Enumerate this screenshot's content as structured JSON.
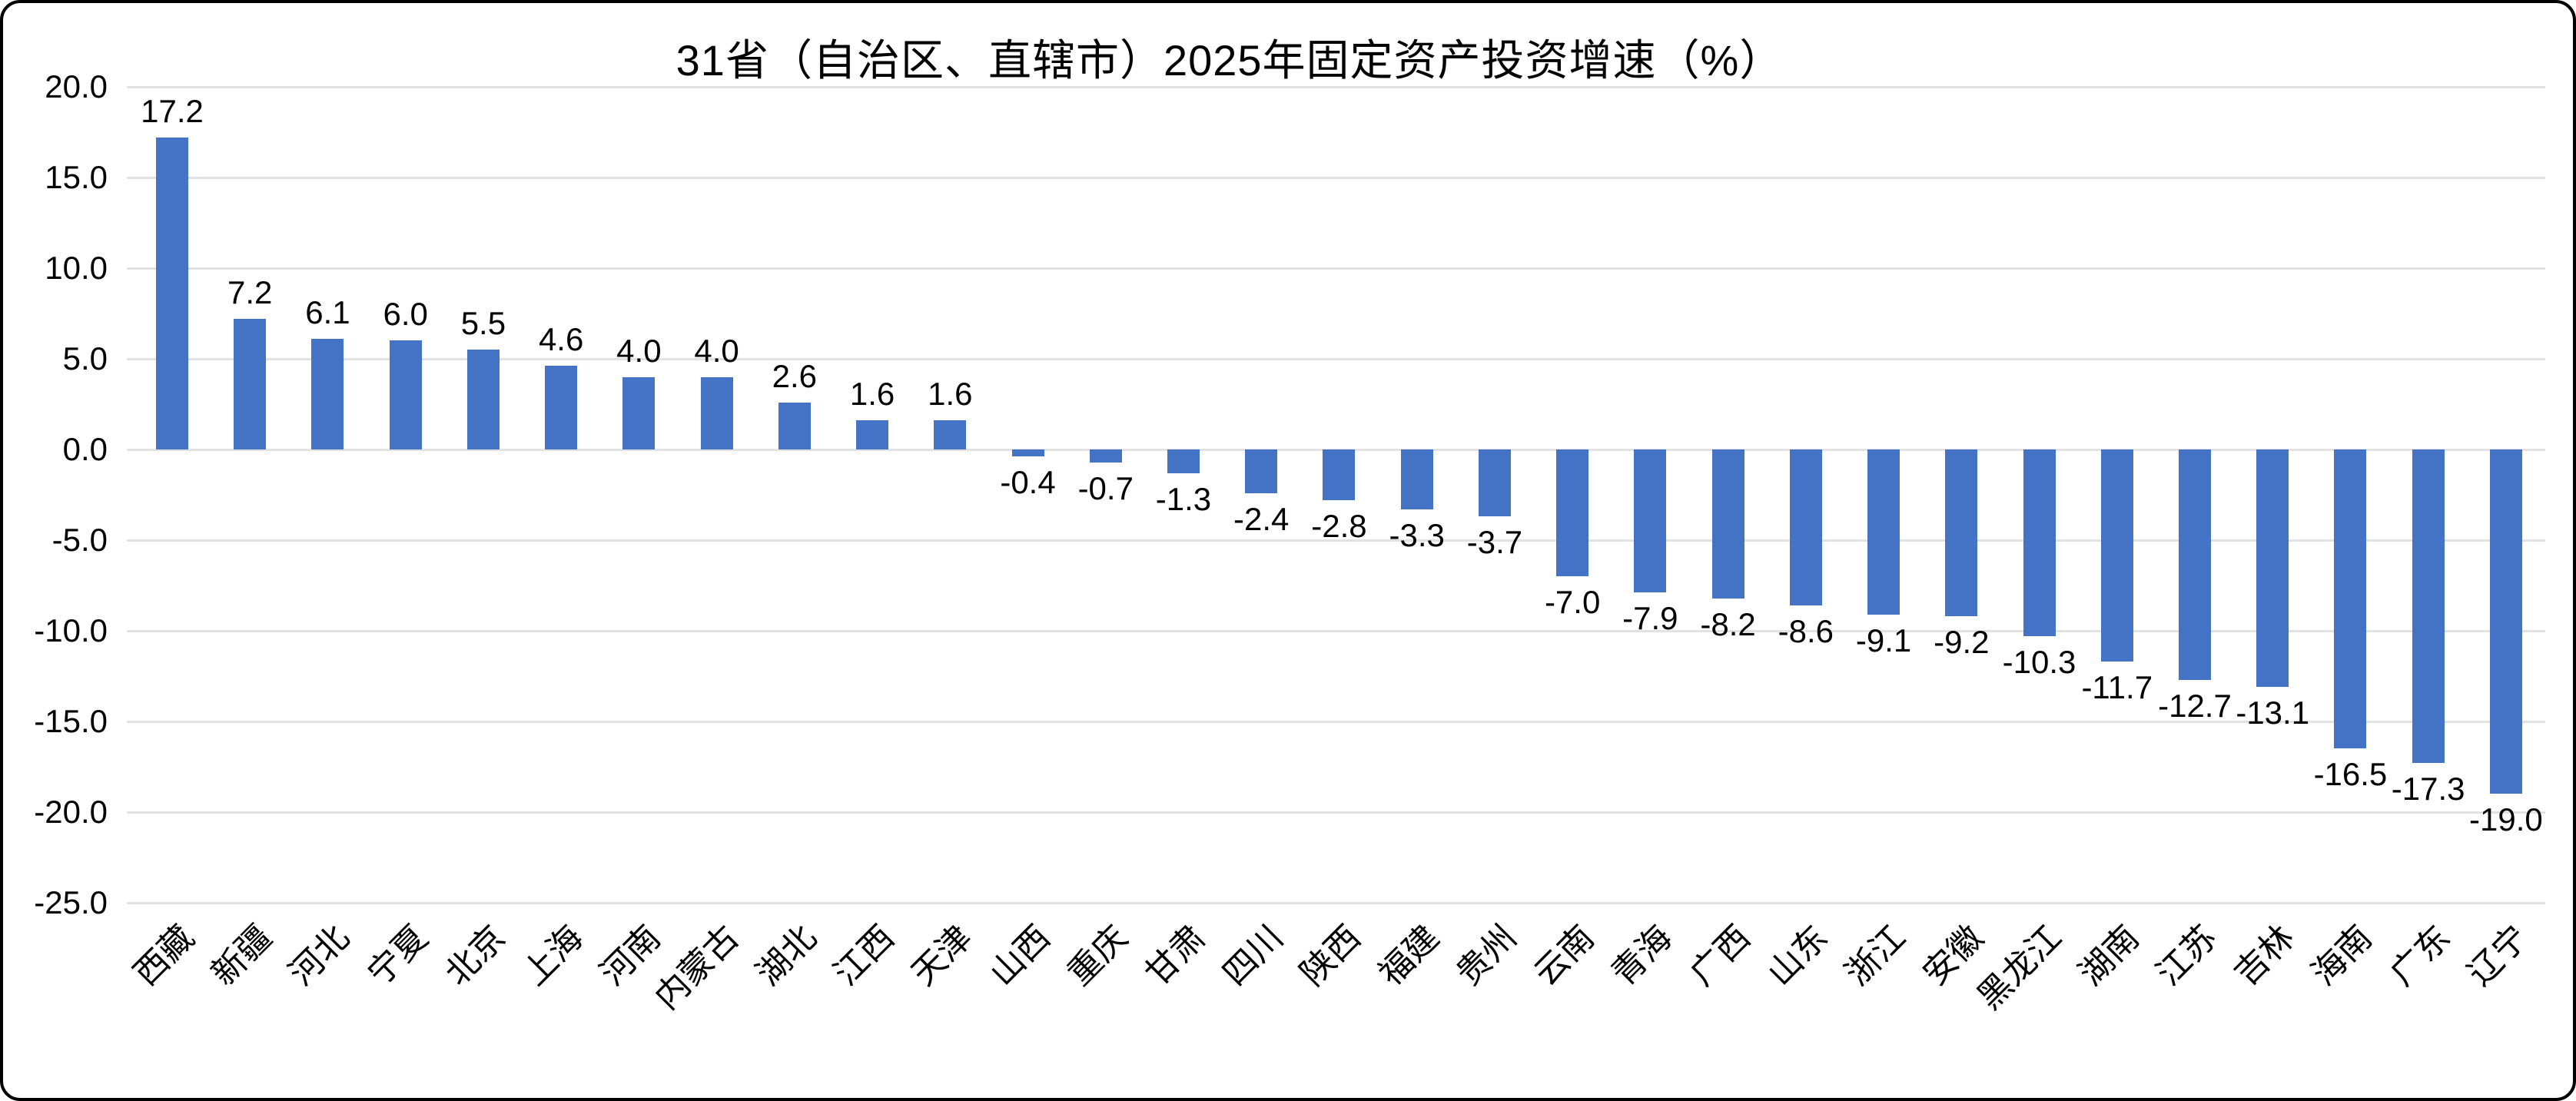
{
  "chart_data": {
    "type": "bar",
    "title": "31省（自治区、直辖市）2025年固定资产投资增速（%）",
    "categories": [
      "西藏",
      "新疆",
      "河北",
      "宁夏",
      "北京",
      "上海",
      "河南",
      "内蒙古",
      "湖北",
      "江西",
      "天津",
      "山西",
      "重庆",
      "甘肃",
      "四川",
      "陕西",
      "福建",
      "贵州",
      "云南",
      "青海",
      "广西",
      "山东",
      "浙江",
      "安徽",
      "黑龙江",
      "湖南",
      "江苏",
      "吉林",
      "海南",
      "广东",
      "辽宁"
    ],
    "values": [
      17.2,
      7.2,
      6.1,
      6.0,
      5.5,
      4.6,
      4.0,
      4.0,
      2.6,
      1.6,
      1.6,
      -0.4,
      -0.7,
      -1.3,
      -2.4,
      -2.8,
      -3.3,
      -3.7,
      -7.0,
      -7.9,
      -8.2,
      -8.6,
      -9.1,
      -9.2,
      -10.3,
      -11.7,
      -12.7,
      -13.1,
      -16.5,
      -17.3,
      -19.0
    ],
    "value_labels": [
      "17.2",
      "7.2",
      "6.1",
      "6.0",
      "5.5",
      "4.6",
      "4.0",
      "4.0",
      "2.6",
      "1.6",
      "1.6",
      "-0.4",
      "-0.7",
      "-1.3",
      "-2.4",
      "-2.8",
      "-3.3",
      "-3.7",
      "-7.0",
      "-7.9",
      "-8.2",
      "-8.6",
      "-9.1",
      "-9.2",
      "-10.3",
      "-11.7",
      "-12.7",
      "-13.1",
      "-16.5",
      "-17.3",
      "-19.0"
    ],
    "y_ticks": [
      "20.0",
      "15.0",
      "10.0",
      "5.0",
      "0.0",
      "-5.0",
      "-10.0",
      "-15.0",
      "-20.0",
      "-25.0"
    ],
    "ylim": [
      -25.0,
      20.0
    ],
    "xlabel": "",
    "ylabel": "",
    "grid": true,
    "legend": "none",
    "bar_color": "#4472C4",
    "gridline_color": "#E2E2E2",
    "text_color": "#000000"
  }
}
